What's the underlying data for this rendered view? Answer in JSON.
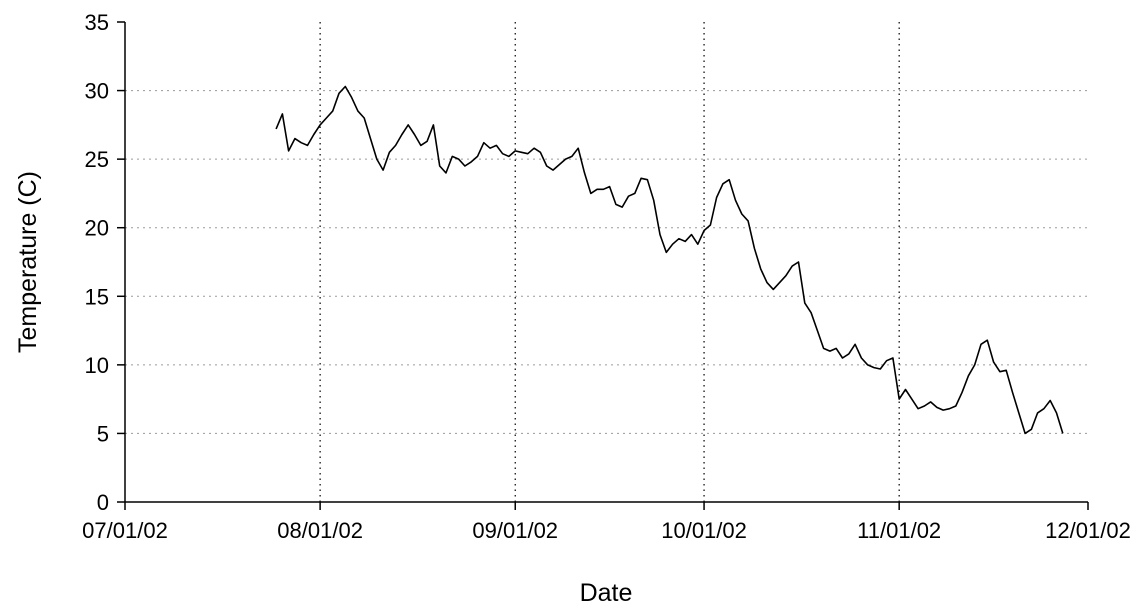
{
  "chart_data": {
    "type": "line",
    "title": "",
    "xlabel": "Date",
    "ylabel": "Temperature (C)",
    "xlim": [
      "2002-07-01",
      "2002-12-01"
    ],
    "ylim": [
      0,
      35
    ],
    "x_ticks": [
      {
        "date": "2002-07-01",
        "label": "07/01/02"
      },
      {
        "date": "2002-08-01",
        "label": "08/01/02"
      },
      {
        "date": "2002-09-01",
        "label": "09/01/02"
      },
      {
        "date": "2002-10-01",
        "label": "10/01/02"
      },
      {
        "date": "2002-11-01",
        "label": "11/01/02"
      },
      {
        "date": "2002-12-01",
        "label": "12/01/02"
      }
    ],
    "y_ticks": [
      0,
      5,
      10,
      15,
      20,
      25,
      30,
      35
    ],
    "grid": {
      "x": "dotted",
      "y": "dotted",
      "x_at_ticks": [
        "2002-08-01",
        "2002-09-01",
        "2002-10-01",
        "2002-11-01"
      ],
      "y_at_ticks": [
        5,
        10,
        15,
        20,
        25,
        30
      ]
    },
    "line_color": "#000000",
    "grid_color": "#9a9a9a",
    "series": [
      {
        "x": [
          "2002-07-25",
          "2002-07-26",
          "2002-07-27",
          "2002-07-28",
          "2002-07-29",
          "2002-07-30",
          "2002-07-31",
          "2002-08-01",
          "2002-08-02",
          "2002-08-03",
          "2002-08-04",
          "2002-08-05",
          "2002-08-06",
          "2002-08-07",
          "2002-08-08",
          "2002-08-09",
          "2002-08-10",
          "2002-08-11",
          "2002-08-12",
          "2002-08-13",
          "2002-08-14",
          "2002-08-15",
          "2002-08-16",
          "2002-08-17",
          "2002-08-18",
          "2002-08-19",
          "2002-08-20",
          "2002-08-21",
          "2002-08-22",
          "2002-08-23",
          "2002-08-24",
          "2002-08-25",
          "2002-08-26",
          "2002-08-27",
          "2002-08-28",
          "2002-08-29",
          "2002-08-30",
          "2002-08-31",
          "2002-09-01",
          "2002-09-02",
          "2002-09-03",
          "2002-09-04",
          "2002-09-05",
          "2002-09-06",
          "2002-09-07",
          "2002-09-08",
          "2002-09-09",
          "2002-09-10",
          "2002-09-11",
          "2002-09-12",
          "2002-09-13",
          "2002-09-14",
          "2002-09-15",
          "2002-09-16",
          "2002-09-17",
          "2002-09-18",
          "2002-09-19",
          "2002-09-20",
          "2002-09-21",
          "2002-09-22",
          "2002-09-23",
          "2002-09-24",
          "2002-09-25",
          "2002-09-26",
          "2002-09-27",
          "2002-09-28",
          "2002-09-29",
          "2002-09-30",
          "2002-10-01",
          "2002-10-02",
          "2002-10-03",
          "2002-10-04",
          "2002-10-05",
          "2002-10-06",
          "2002-10-07",
          "2002-10-08",
          "2002-10-09",
          "2002-10-10",
          "2002-10-11",
          "2002-10-12",
          "2002-10-13",
          "2002-10-14",
          "2002-10-15",
          "2002-10-16",
          "2002-10-17",
          "2002-10-18",
          "2002-10-19",
          "2002-10-20",
          "2002-10-21",
          "2002-10-22",
          "2002-10-23",
          "2002-10-24",
          "2002-10-25",
          "2002-10-26",
          "2002-10-27",
          "2002-10-28",
          "2002-10-29",
          "2002-10-30",
          "2002-10-31",
          "2002-11-01",
          "2002-11-02",
          "2002-11-03",
          "2002-11-04",
          "2002-11-05",
          "2002-11-06",
          "2002-11-07",
          "2002-11-08",
          "2002-11-09",
          "2002-11-10",
          "2002-11-11",
          "2002-11-12",
          "2002-11-13",
          "2002-11-14",
          "2002-11-15",
          "2002-11-16",
          "2002-11-17",
          "2002-11-18",
          "2002-11-19",
          "2002-11-20",
          "2002-11-21",
          "2002-11-22",
          "2002-11-23",
          "2002-11-24",
          "2002-11-25",
          "2002-11-26",
          "2002-11-27"
        ],
        "y": [
          27.2,
          28.3,
          25.6,
          26.5,
          26.2,
          26.0,
          26.8,
          27.5,
          28.0,
          28.5,
          29.8,
          30.3,
          29.5,
          28.5,
          28.0,
          26.5,
          25.0,
          24.2,
          25.5,
          26.0,
          26.8,
          27.5,
          26.8,
          26.0,
          26.3,
          27.5,
          24.5,
          24.0,
          25.2,
          25.0,
          24.5,
          24.8,
          25.2,
          26.2,
          25.8,
          26.0,
          25.4,
          25.2,
          25.6,
          25.5,
          25.4,
          25.8,
          25.5,
          24.5,
          24.2,
          24.6,
          25.0,
          25.2,
          25.8,
          24.0,
          22.5,
          22.8,
          22.8,
          23.0,
          21.7,
          21.5,
          22.3,
          22.5,
          23.6,
          23.5,
          22.0,
          19.5,
          18.2,
          18.8,
          19.2,
          19.0,
          19.5,
          18.8,
          19.8,
          20.2,
          22.2,
          23.2,
          23.5,
          22.0,
          21.0,
          20.5,
          18.5,
          17.0,
          16.0,
          15.5,
          16.0,
          16.5,
          17.2,
          17.5,
          14.5,
          13.8,
          12.5,
          11.2,
          11.0,
          11.2,
          10.5,
          10.8,
          11.5,
          10.5,
          10.0,
          9.8,
          9.7,
          10.3,
          10.5,
          7.5,
          8.2,
          7.5,
          6.8,
          7.0,
          7.3,
          6.9,
          6.7,
          6.8,
          7.0,
          8.0,
          9.2,
          10.0,
          11.5,
          11.8,
          10.2,
          9.5,
          9.6,
          8.0,
          6.5,
          5.0,
          5.3,
          6.5,
          6.8,
          7.4,
          6.5,
          5.0
        ]
      }
    ]
  }
}
